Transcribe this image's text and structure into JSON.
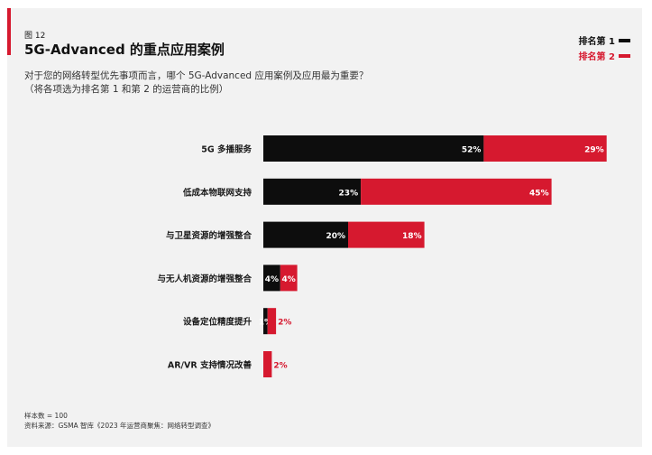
{
  "header": {
    "figure_label": "图 12",
    "title": "5G-Advanced 的重点应用案例",
    "question_line1": "对于您的网络转型优先事项而言，哪个 5G-Advanced 应用案例及应用最为重要？",
    "question_line2": "（将各项选为排名第 1 和第 2 的运营商的比例）"
  },
  "legend": {
    "rank1": "排名第 1",
    "rank2": "排名第 2"
  },
  "colors": {
    "rank1": "#0d0d0d",
    "rank2": "#d6192f",
    "panel": "#f2f2f2"
  },
  "chart_data": {
    "type": "bar",
    "orientation": "horizontal",
    "stacked": true,
    "unit": "%",
    "categories": [
      "5G 多播服务",
      "低成本物联网支持",
      "与卫星资源的增强整合",
      "与无人机资源的增强整合",
      "设备定位精度提升",
      "AR/VR 支持情况改善"
    ],
    "series": [
      {
        "name": "排名第 1",
        "values": [
          52,
          23,
          20,
          4,
          1,
          0
        ]
      },
      {
        "name": "排名第 2",
        "values": [
          29,
          45,
          18,
          4,
          2,
          2
        ]
      }
    ],
    "data_labels": [
      [
        "52%",
        "23%",
        "20%",
        "4%",
        "1%",
        ""
      ],
      [
        "29%",
        "45%",
        "18%",
        "4%",
        "2%",
        "2%"
      ]
    ],
    "legend_position": "top-right",
    "grid": false
  },
  "footer": {
    "sample_size": "样本数 = 100",
    "source": "资料来源：GSMA 智库《2023 年运营商聚焦：网络转型调查》"
  }
}
